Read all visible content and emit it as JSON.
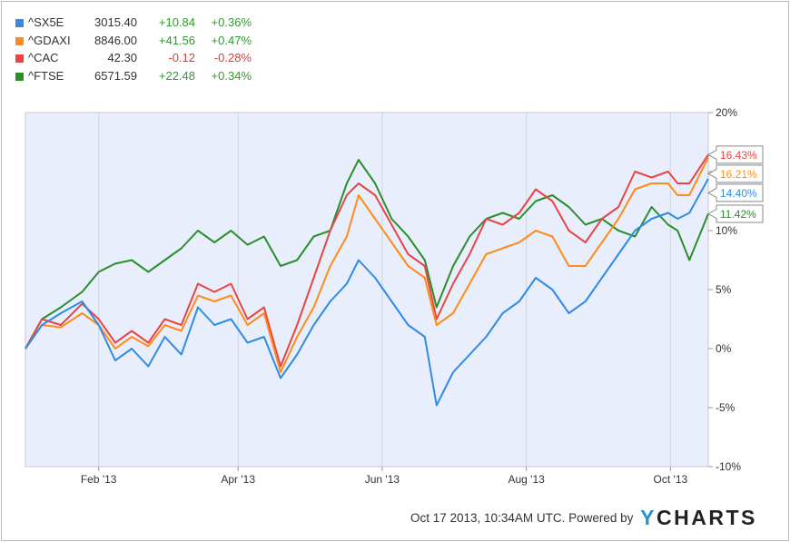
{
  "legend": [
    {
      "symbol": "^SX5E",
      "price": "3015.40",
      "change": "+10.84",
      "pct": "+0.36%",
      "color": "#2f8be6"
    },
    {
      "symbol": "^GDAXI",
      "price": "8846.00",
      "change": "+41.56",
      "pct": "+0.47%",
      "color": "#ff8c1a"
    },
    {
      "symbol": "^CAC",
      "price": "42.30",
      "change": "-0.12",
      "pct": "-0.28%",
      "color": "#e84545"
    },
    {
      "symbol": "^FTSE",
      "price": "6571.59",
      "change": "+22.48",
      "pct": "+0.34%",
      "color": "#2a8f2a"
    }
  ],
  "footer": {
    "timestamp": "Oct 17 2013, 10:34AM UTC.",
    "powered_by": "Powered by",
    "brand_y": "Y",
    "brand_rest": "CHARTS"
  },
  "chart_data": {
    "type": "line",
    "xlim": [
      "2013-01-01",
      "2013-10-17"
    ],
    "ylim": [
      -10,
      20
    ],
    "x_ticks": [
      {
        "date": "2013-02-01",
        "label": "Feb '13"
      },
      {
        "date": "2013-04-01",
        "label": "Apr '13"
      },
      {
        "date": "2013-06-01",
        "label": "Jun '13"
      },
      {
        "date": "2013-08-01",
        "label": "Aug '13"
      },
      {
        "date": "2013-10-01",
        "label": "Oct '13"
      }
    ],
    "y_ticks": [
      {
        "value": 20,
        "label": "20%"
      },
      {
        "value": 15,
        "label": "15%"
      },
      {
        "value": 10,
        "label": "10%"
      },
      {
        "value": 5,
        "label": "5%"
      },
      {
        "value": 0,
        "label": "0%"
      },
      {
        "value": -5,
        "label": "-5%"
      },
      {
        "value": -10,
        "label": "-10%"
      }
    ],
    "grid": "vertical",
    "series": [
      {
        "name": "^FTSE",
        "color": "#2a8f2a",
        "end_label": "11.42%",
        "points": [
          [
            "2013-01-01",
            0
          ],
          [
            "2013-01-08",
            2.5
          ],
          [
            "2013-01-16",
            3.5
          ],
          [
            "2013-01-25",
            4.8
          ],
          [
            "2013-02-01",
            6.5
          ],
          [
            "2013-02-08",
            7.2
          ],
          [
            "2013-02-15",
            7.5
          ],
          [
            "2013-02-22",
            6.5
          ],
          [
            "2013-03-01",
            7.5
          ],
          [
            "2013-03-08",
            8.5
          ],
          [
            "2013-03-15",
            10
          ],
          [
            "2013-03-22",
            9
          ],
          [
            "2013-03-29",
            10
          ],
          [
            "2013-04-05",
            8.8
          ],
          [
            "2013-04-12",
            9.5
          ],
          [
            "2013-04-19",
            7
          ],
          [
            "2013-04-26",
            7.5
          ],
          [
            "2013-05-03",
            9.5
          ],
          [
            "2013-05-10",
            10
          ],
          [
            "2013-05-17",
            14
          ],
          [
            "2013-05-22",
            16
          ],
          [
            "2013-05-29",
            14
          ],
          [
            "2013-06-05",
            11
          ],
          [
            "2013-06-12",
            9.5
          ],
          [
            "2013-06-19",
            7.5
          ],
          [
            "2013-06-24",
            3.5
          ],
          [
            "2013-07-01",
            7
          ],
          [
            "2013-07-08",
            9.5
          ],
          [
            "2013-07-15",
            11
          ],
          [
            "2013-07-22",
            11.5
          ],
          [
            "2013-07-29",
            11
          ],
          [
            "2013-08-05",
            12.5
          ],
          [
            "2013-08-12",
            13
          ],
          [
            "2013-08-19",
            12
          ],
          [
            "2013-08-26",
            10.5
          ],
          [
            "2013-09-02",
            11
          ],
          [
            "2013-09-09",
            10
          ],
          [
            "2013-09-16",
            9.5
          ],
          [
            "2013-09-23",
            12
          ],
          [
            "2013-09-30",
            10.5
          ],
          [
            "2013-10-04",
            10
          ],
          [
            "2013-10-09",
            7.5
          ],
          [
            "2013-10-17",
            11.42
          ]
        ]
      },
      {
        "name": "^CAC",
        "color": "#e84545",
        "end_label": "16.43%",
        "points": [
          [
            "2013-01-01",
            0
          ],
          [
            "2013-01-08",
            2.5
          ],
          [
            "2013-01-16",
            2
          ],
          [
            "2013-01-25",
            3.8
          ],
          [
            "2013-02-01",
            2.5
          ],
          [
            "2013-02-08",
            0.5
          ],
          [
            "2013-02-15",
            1.5
          ],
          [
            "2013-02-22",
            0.5
          ],
          [
            "2013-03-01",
            2.5
          ],
          [
            "2013-03-08",
            2
          ],
          [
            "2013-03-15",
            5.5
          ],
          [
            "2013-03-22",
            4.8
          ],
          [
            "2013-03-29",
            5.5
          ],
          [
            "2013-04-05",
            2.5
          ],
          [
            "2013-04-12",
            3.5
          ],
          [
            "2013-04-19",
            -1.5
          ],
          [
            "2013-04-26",
            2
          ],
          [
            "2013-05-03",
            6
          ],
          [
            "2013-05-10",
            10
          ],
          [
            "2013-05-17",
            13
          ],
          [
            "2013-05-22",
            14
          ],
          [
            "2013-05-29",
            13
          ],
          [
            "2013-06-05",
            10.5
          ],
          [
            "2013-06-12",
            8
          ],
          [
            "2013-06-19",
            7
          ],
          [
            "2013-06-24",
            2.5
          ],
          [
            "2013-07-01",
            5.5
          ],
          [
            "2013-07-08",
            8
          ],
          [
            "2013-07-15",
            11
          ],
          [
            "2013-07-22",
            10.5
          ],
          [
            "2013-07-29",
            11.5
          ],
          [
            "2013-08-05",
            13.5
          ],
          [
            "2013-08-12",
            12.5
          ],
          [
            "2013-08-19",
            10
          ],
          [
            "2013-08-26",
            9
          ],
          [
            "2013-09-02",
            11
          ],
          [
            "2013-09-09",
            12
          ],
          [
            "2013-09-16",
            15
          ],
          [
            "2013-09-23",
            14.5
          ],
          [
            "2013-09-30",
            15
          ],
          [
            "2013-10-04",
            14
          ],
          [
            "2013-10-09",
            14
          ],
          [
            "2013-10-17",
            16.43
          ]
        ]
      },
      {
        "name": "^GDAXI",
        "color": "#ff8c1a",
        "end_label": "16.21%",
        "points": [
          [
            "2013-01-01",
            0
          ],
          [
            "2013-01-08",
            2
          ],
          [
            "2013-01-16",
            1.8
          ],
          [
            "2013-01-25",
            3
          ],
          [
            "2013-02-01",
            2
          ],
          [
            "2013-02-08",
            0
          ],
          [
            "2013-02-15",
            1
          ],
          [
            "2013-02-22",
            0.2
          ],
          [
            "2013-03-01",
            2
          ],
          [
            "2013-03-08",
            1.5
          ],
          [
            "2013-03-15",
            4.5
          ],
          [
            "2013-03-22",
            4
          ],
          [
            "2013-03-29",
            4.5
          ],
          [
            "2013-04-05",
            2
          ],
          [
            "2013-04-12",
            3
          ],
          [
            "2013-04-19",
            -2
          ],
          [
            "2013-04-26",
            1
          ],
          [
            "2013-05-03",
            3.5
          ],
          [
            "2013-05-10",
            7
          ],
          [
            "2013-05-17",
            9.5
          ],
          [
            "2013-05-22",
            13
          ],
          [
            "2013-05-29",
            11
          ],
          [
            "2013-06-05",
            9
          ],
          [
            "2013-06-12",
            7
          ],
          [
            "2013-06-19",
            6
          ],
          [
            "2013-06-24",
            2
          ],
          [
            "2013-07-01",
            3
          ],
          [
            "2013-07-08",
            5.5
          ],
          [
            "2013-07-15",
            8
          ],
          [
            "2013-07-22",
            8.5
          ],
          [
            "2013-07-29",
            9
          ],
          [
            "2013-08-05",
            10
          ],
          [
            "2013-08-12",
            9.5
          ],
          [
            "2013-08-19",
            7
          ],
          [
            "2013-08-26",
            7
          ],
          [
            "2013-09-02",
            9
          ],
          [
            "2013-09-09",
            11
          ],
          [
            "2013-09-16",
            13.5
          ],
          [
            "2013-09-23",
            14
          ],
          [
            "2013-09-30",
            14
          ],
          [
            "2013-10-04",
            13
          ],
          [
            "2013-10-09",
            13
          ],
          [
            "2013-10-17",
            16.21
          ]
        ]
      },
      {
        "name": "^SX5E",
        "color": "#2f8be6",
        "end_label": "14.40%",
        "points": [
          [
            "2013-01-01",
            0
          ],
          [
            "2013-01-08",
            2
          ],
          [
            "2013-01-16",
            3
          ],
          [
            "2013-01-25",
            4
          ],
          [
            "2013-02-01",
            2
          ],
          [
            "2013-02-08",
            -1
          ],
          [
            "2013-02-15",
            0
          ],
          [
            "2013-02-22",
            -1.5
          ],
          [
            "2013-03-01",
            1
          ],
          [
            "2013-03-08",
            -0.5
          ],
          [
            "2013-03-15",
            3.5
          ],
          [
            "2013-03-22",
            2
          ],
          [
            "2013-03-29",
            2.5
          ],
          [
            "2013-04-05",
            0.5
          ],
          [
            "2013-04-12",
            1
          ],
          [
            "2013-04-19",
            -2.5
          ],
          [
            "2013-04-26",
            -0.5
          ],
          [
            "2013-05-03",
            2
          ],
          [
            "2013-05-10",
            4
          ],
          [
            "2013-05-17",
            5.5
          ],
          [
            "2013-05-22",
            7.5
          ],
          [
            "2013-05-29",
            6
          ],
          [
            "2013-06-05",
            4
          ],
          [
            "2013-06-12",
            2
          ],
          [
            "2013-06-19",
            1
          ],
          [
            "2013-06-24",
            -4.8
          ],
          [
            "2013-07-01",
            -2
          ],
          [
            "2013-07-08",
            -0.5
          ],
          [
            "2013-07-15",
            1
          ],
          [
            "2013-07-22",
            3
          ],
          [
            "2013-07-29",
            4
          ],
          [
            "2013-08-05",
            6
          ],
          [
            "2013-08-12",
            5
          ],
          [
            "2013-08-19",
            3
          ],
          [
            "2013-08-26",
            4
          ],
          [
            "2013-09-02",
            6
          ],
          [
            "2013-09-09",
            8
          ],
          [
            "2013-09-16",
            10
          ],
          [
            "2013-09-23",
            11
          ],
          [
            "2013-09-30",
            11.5
          ],
          [
            "2013-10-04",
            11
          ],
          [
            "2013-10-09",
            11.5
          ],
          [
            "2013-10-17",
            14.4
          ]
        ]
      }
    ]
  }
}
